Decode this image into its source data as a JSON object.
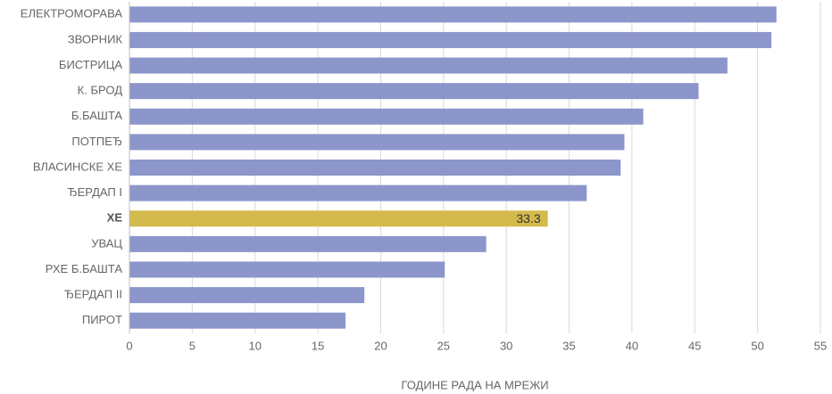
{
  "chart_data": {
    "type": "bar",
    "orientation": "horizontal",
    "x_label": "ГОДИНЕ РАДА НА МРЕЖИ",
    "categories": [
      "ЕЛЕКТРОМОРАВА",
      "ЗВОРНИК",
      "БИСТРИЦА",
      "К. БРОД",
      "Б.БАШТА",
      "ПОТПЕЂ",
      "ВЛАСИНСКЕ ХЕ",
      "ЂЕРДАП I",
      "ХЕ",
      "УВАЦ",
      "РХЕ Б.БАШТА",
      "ЂЕРДАП II",
      "ПИРОТ"
    ],
    "values": [
      51.5,
      51.1,
      47.6,
      45.3,
      40.9,
      39.4,
      39.1,
      36.4,
      33.3,
      28.4,
      25.1,
      18.7,
      17.2
    ],
    "value_labels": [
      null,
      null,
      null,
      null,
      null,
      null,
      null,
      null,
      "33.3",
      null,
      null,
      null,
      null
    ],
    "color": "#8c96cb",
    "highlight": "ХЕ",
    "highlight_color": "#d4b94c",
    "xlim": [
      0,
      55
    ],
    "xticks": [
      0,
      5,
      10,
      15,
      20,
      25,
      30,
      35,
      40,
      45,
      50,
      55
    ],
    "grid": true
  }
}
